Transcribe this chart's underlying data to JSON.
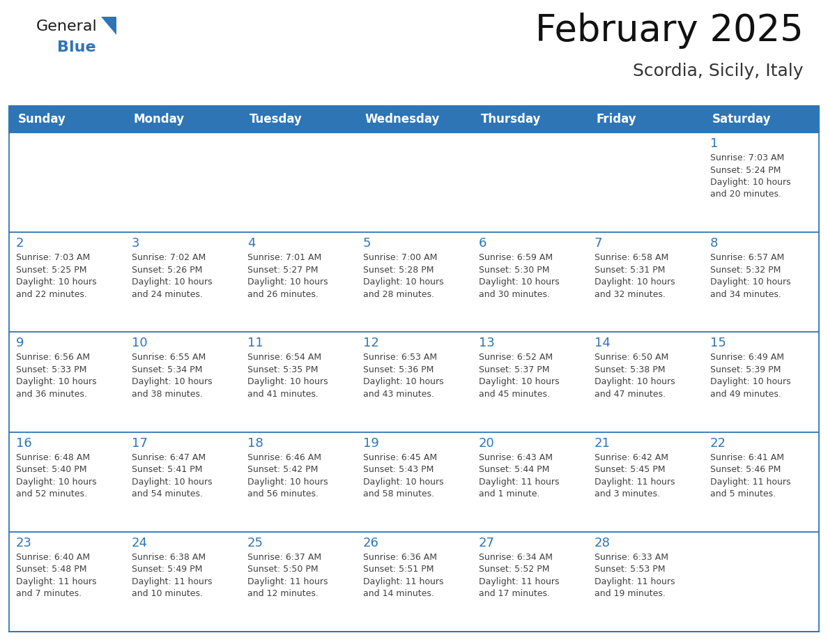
{
  "title": "February 2025",
  "subtitle": "Scordia, Sicily, Italy",
  "header_bg_color": "#2E75B6",
  "header_text_color": "#FFFFFF",
  "cell_bg_color": "#FFFFFF",
  "cell_border_color": "#2E75B6",
  "text_color": "#404040",
  "day_number_color": "#2E75B6",
  "background_color": "#FFFFFF",
  "days_of_week": [
    "Sunday",
    "Monday",
    "Tuesday",
    "Wednesday",
    "Thursday",
    "Friday",
    "Saturday"
  ],
  "calendar_data": [
    [
      {
        "day": null,
        "info": ""
      },
      {
        "day": null,
        "info": ""
      },
      {
        "day": null,
        "info": ""
      },
      {
        "day": null,
        "info": ""
      },
      {
        "day": null,
        "info": ""
      },
      {
        "day": null,
        "info": ""
      },
      {
        "day": 1,
        "info": "Sunrise: 7:03 AM\nSunset: 5:24 PM\nDaylight: 10 hours\nand 20 minutes."
      }
    ],
    [
      {
        "day": 2,
        "info": "Sunrise: 7:03 AM\nSunset: 5:25 PM\nDaylight: 10 hours\nand 22 minutes."
      },
      {
        "day": 3,
        "info": "Sunrise: 7:02 AM\nSunset: 5:26 PM\nDaylight: 10 hours\nand 24 minutes."
      },
      {
        "day": 4,
        "info": "Sunrise: 7:01 AM\nSunset: 5:27 PM\nDaylight: 10 hours\nand 26 minutes."
      },
      {
        "day": 5,
        "info": "Sunrise: 7:00 AM\nSunset: 5:28 PM\nDaylight: 10 hours\nand 28 minutes."
      },
      {
        "day": 6,
        "info": "Sunrise: 6:59 AM\nSunset: 5:30 PM\nDaylight: 10 hours\nand 30 minutes."
      },
      {
        "day": 7,
        "info": "Sunrise: 6:58 AM\nSunset: 5:31 PM\nDaylight: 10 hours\nand 32 minutes."
      },
      {
        "day": 8,
        "info": "Sunrise: 6:57 AM\nSunset: 5:32 PM\nDaylight: 10 hours\nand 34 minutes."
      }
    ],
    [
      {
        "day": 9,
        "info": "Sunrise: 6:56 AM\nSunset: 5:33 PM\nDaylight: 10 hours\nand 36 minutes."
      },
      {
        "day": 10,
        "info": "Sunrise: 6:55 AM\nSunset: 5:34 PM\nDaylight: 10 hours\nand 38 minutes."
      },
      {
        "day": 11,
        "info": "Sunrise: 6:54 AM\nSunset: 5:35 PM\nDaylight: 10 hours\nand 41 minutes."
      },
      {
        "day": 12,
        "info": "Sunrise: 6:53 AM\nSunset: 5:36 PM\nDaylight: 10 hours\nand 43 minutes."
      },
      {
        "day": 13,
        "info": "Sunrise: 6:52 AM\nSunset: 5:37 PM\nDaylight: 10 hours\nand 45 minutes."
      },
      {
        "day": 14,
        "info": "Sunrise: 6:50 AM\nSunset: 5:38 PM\nDaylight: 10 hours\nand 47 minutes."
      },
      {
        "day": 15,
        "info": "Sunrise: 6:49 AM\nSunset: 5:39 PM\nDaylight: 10 hours\nand 49 minutes."
      }
    ],
    [
      {
        "day": 16,
        "info": "Sunrise: 6:48 AM\nSunset: 5:40 PM\nDaylight: 10 hours\nand 52 minutes."
      },
      {
        "day": 17,
        "info": "Sunrise: 6:47 AM\nSunset: 5:41 PM\nDaylight: 10 hours\nand 54 minutes."
      },
      {
        "day": 18,
        "info": "Sunrise: 6:46 AM\nSunset: 5:42 PM\nDaylight: 10 hours\nand 56 minutes."
      },
      {
        "day": 19,
        "info": "Sunrise: 6:45 AM\nSunset: 5:43 PM\nDaylight: 10 hours\nand 58 minutes."
      },
      {
        "day": 20,
        "info": "Sunrise: 6:43 AM\nSunset: 5:44 PM\nDaylight: 11 hours\nand 1 minute."
      },
      {
        "day": 21,
        "info": "Sunrise: 6:42 AM\nSunset: 5:45 PM\nDaylight: 11 hours\nand 3 minutes."
      },
      {
        "day": 22,
        "info": "Sunrise: 6:41 AM\nSunset: 5:46 PM\nDaylight: 11 hours\nand 5 minutes."
      }
    ],
    [
      {
        "day": 23,
        "info": "Sunrise: 6:40 AM\nSunset: 5:48 PM\nDaylight: 11 hours\nand 7 minutes."
      },
      {
        "day": 24,
        "info": "Sunrise: 6:38 AM\nSunset: 5:49 PM\nDaylight: 11 hours\nand 10 minutes."
      },
      {
        "day": 25,
        "info": "Sunrise: 6:37 AM\nSunset: 5:50 PM\nDaylight: 11 hours\nand 12 minutes."
      },
      {
        "day": 26,
        "info": "Sunrise: 6:36 AM\nSunset: 5:51 PM\nDaylight: 11 hours\nand 14 minutes."
      },
      {
        "day": 27,
        "info": "Sunrise: 6:34 AM\nSunset: 5:52 PM\nDaylight: 11 hours\nand 17 minutes."
      },
      {
        "day": 28,
        "info": "Sunrise: 6:33 AM\nSunset: 5:53 PM\nDaylight: 11 hours\nand 19 minutes."
      },
      {
        "day": null,
        "info": ""
      }
    ]
  ],
  "logo_general_color": "#1a1a1a",
  "logo_blue_color": "#2E75B6",
  "logo_triangle_color": "#2E75B6",
  "title_fontsize": 38,
  "subtitle_fontsize": 18,
  "header_fontsize": 12,
  "day_number_fontsize": 13,
  "info_fontsize": 9
}
